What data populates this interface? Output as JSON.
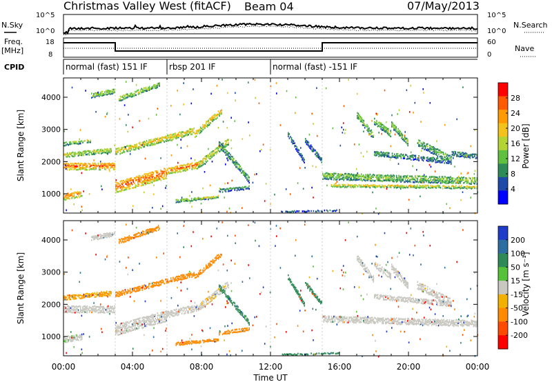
{
  "header": {
    "title": "Christmas Valley West (fitACF)",
    "beam": "Beam 04",
    "date": "07/May/2013"
  },
  "top_panels": {
    "nsky_label": "N.Sky",
    "nsearch_label": "N.Search",
    "freq_label_1": "Freq.",
    "freq_label_2": "[MHz]",
    "nave_label": "Nave",
    "cpid_label": "CPID",
    "noise_ticks_left": [
      "10^5",
      "10^0"
    ],
    "noise_ticks_right": [
      "10^5",
      "10^0"
    ],
    "freq_ticks_left": [
      "18",
      "8"
    ],
    "nave_ticks_right": [
      "60",
      "0"
    ]
  },
  "cpid_segments": [
    {
      "start_hour": 0,
      "end_hour": 6,
      "label": "normal (fast) 151 IF"
    },
    {
      "start_hour": 6,
      "end_hour": 12,
      "label": "rbsp 201 IF"
    },
    {
      "start_hour": 12,
      "end_hour": 24,
      "label": "normal (fast) -151 IF"
    }
  ],
  "colors": {
    "power_scale": [
      "#0000ff",
      "#1f4aa8",
      "#2e8a57",
      "#5fbf3f",
      "#b4d434",
      "#f3c21b",
      "#ff9a00",
      "#ff5a00",
      "#ff0000"
    ],
    "velocity_scale": [
      "#1e3cc8",
      "#2d6ea0",
      "#2e8a57",
      "#55c23a",
      "#c8c8c0",
      "#f2b000",
      "#ff8a00",
      "#ff4a00",
      "#ff0000"
    ]
  },
  "chart_data": [
    {
      "type": "heatmap",
      "panel": "power",
      "ylabel": "Slant Range [km]",
      "yticks": [
        "1000",
        "2000",
        "3000",
        "4000"
      ],
      "ylim": [
        400,
        4600
      ],
      "xlim": [
        0,
        24
      ],
      "colorbar_label": "Power [dB]",
      "colorbar_ticks": [
        "4",
        "8",
        "12",
        "16",
        "20",
        "24",
        "28"
      ],
      "colorbar_range": [
        0,
        32
      ],
      "bands": [
        {
          "t0": 0.0,
          "t1": 3.0,
          "r0": 1900,
          "r1": 1900,
          "w": 220,
          "v": 26
        },
        {
          "t0": 0.0,
          "t1": 1.1,
          "r0": 950,
          "r1": 1050,
          "w": 200,
          "v": 26
        },
        {
          "t0": 0.0,
          "t1": 2.8,
          "r0": 2250,
          "r1": 2400,
          "w": 150,
          "v": 18
        },
        {
          "t0": 0.0,
          "t1": 1.6,
          "r0": 2600,
          "r1": 2700,
          "w": 120,
          "v": 14
        },
        {
          "t0": 3.0,
          "t1": 7.6,
          "r0": 2350,
          "r1": 3000,
          "w": 200,
          "v": 20
        },
        {
          "t0": 3.0,
          "t1": 6.0,
          "r0": 1250,
          "r1": 1700,
          "w": 350,
          "v": 27
        },
        {
          "t0": 6.0,
          "t1": 7.8,
          "r0": 1750,
          "r1": 1950,
          "w": 220,
          "v": 25
        },
        {
          "t0": 7.6,
          "t1": 9.2,
          "r0": 2900,
          "r1": 3650,
          "w": 200,
          "v": 20
        },
        {
          "t0": 7.8,
          "t1": 9.6,
          "r0": 1950,
          "r1": 2700,
          "w": 220,
          "v": 18
        },
        {
          "t0": 9.0,
          "t1": 10.8,
          "r0": 2600,
          "r1": 1450,
          "w": 200,
          "v": 12
        },
        {
          "t0": 6.5,
          "t1": 9.0,
          "r0": 820,
          "r1": 950,
          "w": 90,
          "v": 16
        },
        {
          "t0": 9.0,
          "t1": 10.8,
          "r0": 1150,
          "r1": 1250,
          "w": 120,
          "v": 10
        },
        {
          "t0": 1.6,
          "t1": 3.0,
          "r0": 4100,
          "r1": 4250,
          "w": 150,
          "v": 16
        },
        {
          "t0": 3.2,
          "t1": 5.6,
          "r0": 4000,
          "r1": 4450,
          "w": 150,
          "v": 16
        },
        {
          "t0": 13.0,
          "t1": 14.0,
          "r0": 2900,
          "r1": 2000,
          "w": 150,
          "v": 8
        },
        {
          "t0": 14.0,
          "t1": 15.0,
          "r0": 2700,
          "r1": 2050,
          "w": 150,
          "v": 8
        },
        {
          "t0": 15.0,
          "t1": 24.0,
          "r0": 1600,
          "r1": 1450,
          "w": 220,
          "v": 14
        },
        {
          "t0": 15.5,
          "t1": 24.0,
          "r0": 1300,
          "r1": 1250,
          "w": 100,
          "v": 18
        },
        {
          "t0": 18.0,
          "t1": 22.5,
          "r0": 2300,
          "r1": 2050,
          "w": 160,
          "v": 10
        },
        {
          "t0": 20.5,
          "t1": 22.5,
          "r0": 2650,
          "r1": 2100,
          "w": 250,
          "v": 12
        },
        {
          "t0": 22.5,
          "t1": 24.0,
          "r0": 2300,
          "r1": 2200,
          "w": 150,
          "v": 10
        },
        {
          "t0": 17.0,
          "t1": 18.0,
          "r0": 3500,
          "r1": 2800,
          "w": 200,
          "v": 14
        },
        {
          "t0": 18.0,
          "t1": 19.0,
          "r0": 3300,
          "r1": 2900,
          "w": 200,
          "v": 14
        },
        {
          "t0": 19.0,
          "t1": 20.0,
          "r0": 3200,
          "r1": 2600,
          "w": 200,
          "v": 14
        },
        {
          "t0": 12.6,
          "t1": 16.0,
          "r0": 500,
          "r1": 550,
          "w": 80,
          "v": 10
        }
      ]
    },
    {
      "type": "heatmap",
      "panel": "velocity",
      "ylabel": "Slant Range [km]",
      "yticks": [
        "1000",
        "2000",
        "3000",
        "4000"
      ],
      "ylim": [
        400,
        4600
      ],
      "xlim": [
        0,
        24
      ],
      "colorbar_label": "Velocity [m s⁻¹]",
      "colorbar_ticks": [
        "200",
        "100",
        "50",
        "15",
        "-15",
        "-50",
        "-100",
        "-200"
      ],
      "xticks": [
        "00:00",
        "04:00",
        "08:00",
        "12:00",
        "16:00",
        "20:00",
        "00:00"
      ],
      "xlabel": "Time UT",
      "bands": [
        {
          "t0": 0.0,
          "t1": 3.0,
          "r0": 1900,
          "r1": 1900,
          "w": 230,
          "v": 0
        },
        {
          "t0": 0.0,
          "t1": 1.1,
          "r0": 950,
          "r1": 1050,
          "w": 200,
          "v": 5
        },
        {
          "t0": 0.0,
          "t1": 2.8,
          "r0": 2250,
          "r1": 2400,
          "w": 150,
          "v": -30
        },
        {
          "t0": 3.0,
          "t1": 7.6,
          "r0": 2350,
          "r1": 3000,
          "w": 160,
          "v": -60
        },
        {
          "t0": 3.0,
          "t1": 6.0,
          "r0": 1250,
          "r1": 1700,
          "w": 350,
          "v": 0
        },
        {
          "t0": 6.0,
          "t1": 7.8,
          "r0": 1750,
          "r1": 1950,
          "w": 220,
          "v": 0
        },
        {
          "t0": 7.6,
          "t1": 9.2,
          "r0": 2900,
          "r1": 3650,
          "w": 160,
          "v": -60
        },
        {
          "t0": 7.8,
          "t1": 9.6,
          "r0": 1950,
          "r1": 2700,
          "w": 220,
          "v": -5
        },
        {
          "t0": 9.0,
          "t1": 10.8,
          "r0": 2600,
          "r1": 1450,
          "w": 160,
          "v": 60
        },
        {
          "t0": 6.5,
          "t1": 9.0,
          "r0": 820,
          "r1": 950,
          "w": 100,
          "v": -60
        },
        {
          "t0": 9.0,
          "t1": 10.8,
          "r0": 1150,
          "r1": 1300,
          "w": 130,
          "v": -60
        },
        {
          "t0": 1.6,
          "t1": 3.0,
          "r0": 4100,
          "r1": 4250,
          "w": 150,
          "v": 0
        },
        {
          "t0": 3.2,
          "t1": 5.6,
          "r0": 4000,
          "r1": 4450,
          "w": 150,
          "v": -60
        },
        {
          "t0": 13.0,
          "t1": 14.0,
          "r0": 2900,
          "r1": 2000,
          "w": 150,
          "v": 60
        },
        {
          "t0": 14.0,
          "t1": 15.0,
          "r0": 2700,
          "r1": 2050,
          "w": 150,
          "v": 60
        },
        {
          "t0": 15.0,
          "t1": 24.0,
          "r0": 1600,
          "r1": 1450,
          "w": 200,
          "v": 0
        },
        {
          "t0": 18.0,
          "t1": 22.5,
          "r0": 2300,
          "r1": 2050,
          "w": 160,
          "v": 0
        },
        {
          "t0": 20.5,
          "t1": 22.5,
          "r0": 2650,
          "r1": 2100,
          "w": 250,
          "v": 0
        },
        {
          "t0": 17.0,
          "t1": 18.0,
          "r0": 3500,
          "r1": 2800,
          "w": 200,
          "v": 0
        },
        {
          "t0": 18.0,
          "t1": 19.0,
          "r0": 3300,
          "r1": 2900,
          "w": 200,
          "v": 0
        },
        {
          "t0": 19.0,
          "t1": 20.0,
          "r0": 3200,
          "r1": 2600,
          "w": 200,
          "v": 0
        },
        {
          "t0": 12.6,
          "t1": 16.0,
          "r0": 500,
          "r1": 550,
          "w": 80,
          "v": 60
        }
      ]
    }
  ]
}
